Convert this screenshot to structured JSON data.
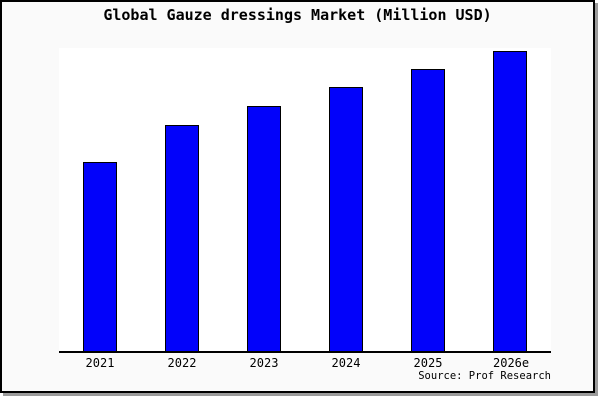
{
  "window": {
    "background": "#fafafa",
    "plot_background": "#ffffff",
    "border_color": "#000000",
    "shadow_color": "#9b9b9b"
  },
  "chart": {
    "title": "Global Gauze dressings Market (Million USD)",
    "source_note": "Source: Prof Research",
    "bar_fill": "#0202fa",
    "bar_border": "#000000"
  },
  "chart_data": {
    "type": "bar",
    "title": "Global Gauze dressings Market (Million USD)",
    "categories": [
      "2021",
      "2022",
      "2023",
      "2024",
      "2025",
      "2026e"
    ],
    "values": [
      63.0,
      75.2,
      81.7,
      88.0,
      94.0,
      100.0
    ],
    "value_note": "y-axis is unlabeled; values estimated from bar heights, scaled so 2026e = 100",
    "xlabel": "",
    "ylabel": "",
    "ylim": [
      0,
      101
    ],
    "grid": false,
    "legend": false,
    "annotations": [
      "Source: Prof Research"
    ]
  }
}
